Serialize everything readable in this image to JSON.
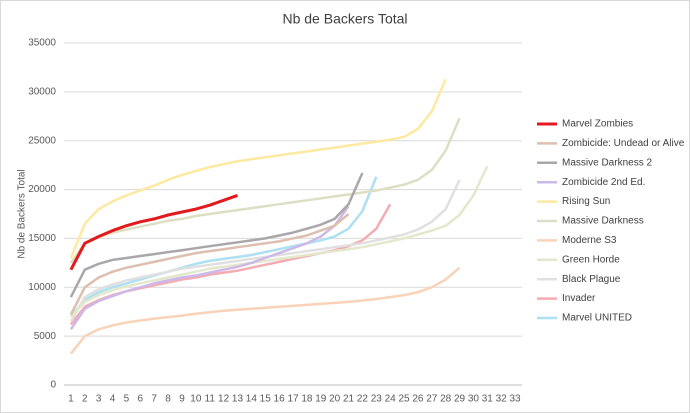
{
  "chart_data": {
    "type": "line",
    "title": "Nb de Backers Total",
    "y_label": "Nb de Backers Total",
    "categories": [
      1,
      2,
      3,
      4,
      5,
      6,
      7,
      8,
      9,
      10,
      11,
      12,
      13,
      14,
      15,
      16,
      17,
      18,
      19,
      20,
      21,
      22,
      23,
      24,
      25,
      26,
      27,
      28,
      29,
      30,
      31,
      32,
      33
    ],
    "ylim": [
      0,
      35000
    ],
    "yticks": [
      0,
      5000,
      10000,
      15000,
      20000,
      25000,
      30000,
      35000
    ],
    "grid": true,
    "legend": "right",
    "series": [
      {
        "name": "Marvel Zombies",
        "color": "#e31a1c",
        "values": [
          11800,
          14500,
          15200,
          15800,
          16300,
          16700,
          17000,
          17400,
          17700,
          18000,
          18400,
          18900,
          19400,
          null,
          null,
          null,
          null,
          null,
          null,
          null,
          null,
          null,
          null,
          null,
          null,
          null,
          null,
          null,
          null,
          null,
          null,
          null,
          null
        ]
      },
      {
        "name": "Zombicide: Undead or Alive",
        "color": "#dcbfae",
        "values": [
          7200,
          10000,
          11000,
          11600,
          12000,
          12300,
          12600,
          12900,
          13200,
          13500,
          13700,
          13900,
          14100,
          14300,
          14500,
          14700,
          15000,
          15300,
          15800,
          16300,
          17500,
          null,
          null,
          null,
          null,
          null,
          null,
          null,
          null,
          null,
          null,
          null,
          null
        ]
      },
      {
        "name": "Massive Darkness 2",
        "color": "#aaa6aa",
        "values": [
          9000,
          11800,
          12400,
          12800,
          13000,
          13200,
          13400,
          13600,
          13800,
          14000,
          14200,
          14400,
          14600,
          14800,
          15000,
          15300,
          15600,
          16000,
          16400,
          17000,
          18500,
          21700,
          null,
          null,
          null,
          null,
          null,
          null,
          null,
          null,
          null,
          null,
          null
        ]
      },
      {
        "name": "Zombicide 2nd Ed.",
        "color": "#cdb8e8",
        "values": [
          5700,
          7800,
          8600,
          9100,
          9600,
          10000,
          10400,
          10700,
          11000,
          11200,
          11500,
          11800,
          12100,
          12500,
          13000,
          13500,
          14000,
          14500,
          15200,
          16300,
          18300,
          null,
          null,
          null,
          null,
          null,
          null,
          null,
          null,
          null,
          null,
          null,
          null
        ]
      },
      {
        "name": "Rising Sun",
        "color": "#fde9a0",
        "values": [
          13000,
          16500,
          18000,
          18800,
          19400,
          19900,
          20400,
          21000,
          21500,
          21900,
          22300,
          22600,
          22900,
          23100,
          23300,
          23500,
          23700,
          23900,
          24100,
          24300,
          24500,
          24700,
          24900,
          25100,
          25400,
          26200,
          28000,
          31300,
          null,
          null,
          null,
          null,
          null
        ]
      },
      {
        "name": "Massive Darkness",
        "color": "#dddfc4",
        "values": [
          12500,
          14500,
          15100,
          15600,
          15900,
          16200,
          16500,
          16800,
          17000,
          17300,
          17500,
          17700,
          17900,
          18100,
          18300,
          18500,
          18700,
          18900,
          19100,
          19300,
          19500,
          19700,
          19900,
          20200,
          20500,
          21000,
          22000,
          24000,
          27300,
          null,
          null,
          null,
          null
        ]
      },
      {
        "name": "Moderne S3",
        "color": "#f9d3b8",
        "values": [
          3200,
          5000,
          5700,
          6100,
          6400,
          6600,
          6800,
          6950,
          7100,
          7300,
          7450,
          7600,
          7700,
          7800,
          7900,
          8000,
          8100,
          8200,
          8300,
          8400,
          8500,
          8650,
          8800,
          9000,
          9200,
          9500,
          10000,
          10800,
          12000,
          null,
          null,
          null,
          null
        ]
      },
      {
        "name": "Green Horde",
        "color": "#e3e8cd",
        "values": [
          7000,
          8500,
          9200,
          9700,
          10100,
          10400,
          10700,
          11000,
          11300,
          11600,
          11900,
          12100,
          12300,
          12500,
          12700,
          12900,
          13100,
          13300,
          13500,
          13700,
          13900,
          14100,
          14400,
          14700,
          15000,
          15400,
          15800,
          16300,
          17400,
          19400,
          22400,
          null,
          null
        ]
      },
      {
        "name": "Black Plague",
        "color": "#e0e0e0",
        "values": [
          6500,
          9000,
          9800,
          10300,
          10700,
          11000,
          11300,
          11600,
          11900,
          12100,
          12300,
          12500,
          12700,
          12900,
          13100,
          13300,
          13500,
          13700,
          13900,
          14100,
          14300,
          14500,
          14800,
          15100,
          15400,
          15900,
          16700,
          18000,
          21000,
          null,
          null,
          null,
          null
        ]
      },
      {
        "name": "Invader",
        "color": "#f4abb2",
        "values": [
          6200,
          8000,
          8700,
          9200,
          9600,
          9900,
          10200,
          10500,
          10800,
          11000,
          11300,
          11500,
          11700,
          12000,
          12300,
          12600,
          12900,
          13200,
          13500,
          13800,
          14200,
          14800,
          16000,
          18500,
          null,
          null,
          null,
          null,
          null,
          null,
          null,
          null,
          null
        ]
      },
      {
        "name": "Marvel UNITED",
        "color": "#ade0f2",
        "values": [
          7000,
          8700,
          9500,
          10000,
          10400,
          10800,
          11200,
          11600,
          12000,
          12400,
          12700,
          12900,
          13100,
          13300,
          13600,
          13900,
          14200,
          14500,
          14800,
          15200,
          16000,
          17800,
          21300,
          null,
          null,
          null,
          null,
          null,
          null,
          null,
          null,
          null,
          null
        ]
      }
    ]
  }
}
